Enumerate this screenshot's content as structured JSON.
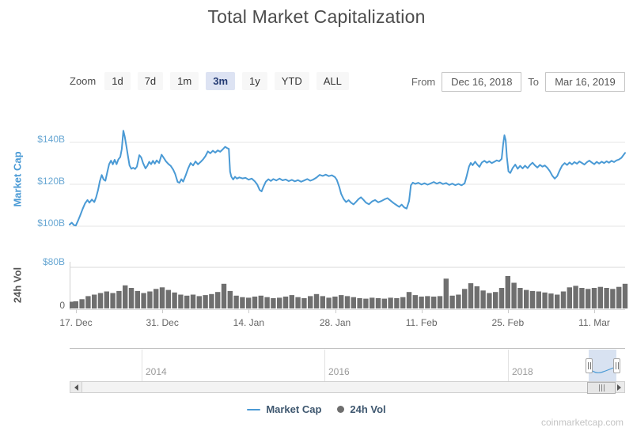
{
  "title": "Total Market Capitalization",
  "range_selector": {
    "zoom_label": "Zoom",
    "buttons": [
      {
        "label": "1d",
        "selected": false
      },
      {
        "label": "7d",
        "selected": false
      },
      {
        "label": "1m",
        "selected": false
      },
      {
        "label": "3m",
        "selected": true
      },
      {
        "label": "1y",
        "selected": false
      },
      {
        "label": "YTD",
        "selected": false
      },
      {
        "label": "ALL",
        "selected": false
      }
    ],
    "from_label": "From",
    "from_value": "Dec 16, 2018",
    "to_label": "To",
    "to_value": "Mar 16, 2019"
  },
  "axes": {
    "market_cap": {
      "title": "Market Cap",
      "ticks": [
        "$140B",
        "$120B",
        "$100B"
      ]
    },
    "volume": {
      "title": "24h Vol",
      "ticks": [
        "$80B",
        "0"
      ]
    },
    "x_ticks": [
      "17. Dec",
      "31. Dec",
      "14. Jan",
      "28. Jan",
      "11. Feb",
      "25. Feb",
      "11. Mar"
    ]
  },
  "navigator": {
    "years": [
      "2014",
      "2016",
      "2018"
    ]
  },
  "legend": [
    {
      "label": "Market Cap",
      "symbol": "line",
      "color": "#4a9ad5"
    },
    {
      "label": "24h Vol",
      "symbol": "circle",
      "color": "#6e6e6e"
    }
  ],
  "watermark": "coinmarketcap.com",
  "colors": {
    "line": "#4a9ad5",
    "volume_bar": "#6f6f6f",
    "y_tick_blue": "#68a7d3",
    "gridline": "#e6e6e6",
    "pane_border": "#d9d9d9",
    "selected_button_bg": "#dde3f3",
    "selection_fill": "rgba(101,141,198,0.25)"
  },
  "chart_data": [
    {
      "type": "line",
      "name": "Market Cap",
      "ylabel": "Market Cap",
      "units": "USD billions",
      "x_unit": "days since Dec 16 2018",
      "x_range": [
        0,
        90
      ],
      "ylim": [
        95,
        152
      ],
      "yticks": [
        100,
        120,
        140
      ],
      "points": [
        [
          0,
          100.8
        ],
        [
          0.35,
          101.7
        ],
        [
          0.7,
          100.5
        ],
        [
          1,
          100.3
        ],
        [
          1.3,
          102.2
        ],
        [
          1.7,
          105.1
        ],
        [
          2.1,
          108.2
        ],
        [
          2.5,
          110.9
        ],
        [
          2.9,
          112.5
        ],
        [
          3.2,
          111.2
        ],
        [
          3.6,
          112.7
        ],
        [
          4,
          111.5
        ],
        [
          4.3,
          113.8
        ],
        [
          4.6,
          117.2
        ],
        [
          4.9,
          121.5
        ],
        [
          5.2,
          124.4
        ],
        [
          5.5,
          122.3
        ],
        [
          5.8,
          121.7
        ],
        [
          6.1,
          125.8
        ],
        [
          6.4,
          129.6
        ],
        [
          6.7,
          131.3
        ],
        [
          7,
          129.5
        ],
        [
          7.3,
          131.7
        ],
        [
          7.6,
          129.6
        ],
        [
          7.9,
          131.9
        ],
        [
          8.2,
          133
        ],
        [
          8.45,
          136.8
        ],
        [
          8.7,
          145.6
        ],
        [
          8.95,
          142.5
        ],
        [
          9.2,
          138
        ],
        [
          9.45,
          133.5
        ],
        [
          9.7,
          129
        ],
        [
          10,
          127.4
        ],
        [
          10.3,
          127.9
        ],
        [
          10.6,
          127.3
        ],
        [
          10.9,
          128.4
        ],
        [
          11.3,
          133.9
        ],
        [
          11.6,
          132.8
        ],
        [
          11.9,
          130.1
        ],
        [
          12.3,
          127.6
        ],
        [
          12.6,
          128.9
        ],
        [
          12.9,
          130.7
        ],
        [
          13.2,
          129.6
        ],
        [
          13.5,
          131.2
        ],
        [
          13.8,
          129.8
        ],
        [
          14.1,
          131.4
        ],
        [
          14.5,
          130.2
        ],
        [
          14.9,
          134.1
        ],
        [
          15.2,
          132.8
        ],
        [
          15.6,
          131
        ],
        [
          16,
          129.7
        ],
        [
          16.4,
          128.7
        ],
        [
          16.8,
          126.9
        ],
        [
          17.1,
          124.9
        ],
        [
          17.5,
          121.1
        ],
        [
          17.8,
          120.7
        ],
        [
          18.1,
          122.4
        ],
        [
          18.4,
          121.3
        ],
        [
          18.8,
          124.2
        ],
        [
          19.2,
          127.6
        ],
        [
          19.6,
          130.1
        ],
        [
          20,
          129
        ],
        [
          20.4,
          130.9
        ],
        [
          20.8,
          129.5
        ],
        [
          21.2,
          130.6
        ],
        [
          21.6,
          131.8
        ],
        [
          22,
          133.4
        ],
        [
          22.4,
          135.7
        ],
        [
          22.8,
          134.8
        ],
        [
          23.2,
          136
        ],
        [
          23.6,
          135.1
        ],
        [
          24,
          136.2
        ],
        [
          24.4,
          135.5
        ],
        [
          24.8,
          136.6
        ],
        [
          25.2,
          137.9
        ],
        [
          25.5,
          137.3
        ],
        [
          25.8,
          136.9
        ],
        [
          26,
          126
        ],
        [
          26.2,
          123.6
        ],
        [
          26.5,
          122.3
        ],
        [
          26.8,
          123.6
        ],
        [
          27.1,
          122.7
        ],
        [
          27.5,
          123.3
        ],
        [
          28,
          122.8
        ],
        [
          28.5,
          123.1
        ],
        [
          29,
          122.2
        ],
        [
          29.5,
          122.7
        ],
        [
          30,
          121.4
        ],
        [
          30.4,
          119.9
        ],
        [
          30.8,
          117.3
        ],
        [
          31.1,
          116.6
        ],
        [
          31.4,
          118.8
        ],
        [
          31.8,
          121.3
        ],
        [
          32.2,
          122.4
        ],
        [
          32.6,
          121.6
        ],
        [
          33,
          122.5
        ],
        [
          33.5,
          121.8
        ],
        [
          34,
          122.7
        ],
        [
          34.5,
          121.9
        ],
        [
          35,
          122.3
        ],
        [
          35.5,
          121.5
        ],
        [
          36,
          122.1
        ],
        [
          36.5,
          121.4
        ],
        [
          37,
          122
        ],
        [
          37.5,
          121.2
        ],
        [
          38,
          121.8
        ],
        [
          38.5,
          122.5
        ],
        [
          39,
          121.7
        ],
        [
          39.5,
          122.3
        ],
        [
          40,
          123.2
        ],
        [
          40.5,
          124.5
        ],
        [
          41,
          124
        ],
        [
          41.5,
          124.6
        ],
        [
          42,
          123.9
        ],
        [
          42.5,
          124.3
        ],
        [
          43,
          123.4
        ],
        [
          43.3,
          122.1
        ],
        [
          43.7,
          118.6
        ],
        [
          44,
          115.4
        ],
        [
          44.4,
          113
        ],
        [
          44.8,
          111.5
        ],
        [
          45.2,
          112.4
        ],
        [
          45.6,
          111.2
        ],
        [
          46,
          110.4
        ],
        [
          46.4,
          111.6
        ],
        [
          46.8,
          112.9
        ],
        [
          47.2,
          113.8
        ],
        [
          47.6,
          112.6
        ],
        [
          48,
          111.3
        ],
        [
          48.5,
          110.5
        ],
        [
          49,
          111.8
        ],
        [
          49.5,
          112.5
        ],
        [
          50,
          111.4
        ],
        [
          50.5,
          112
        ],
        [
          51,
          112.8
        ],
        [
          51.5,
          113.4
        ],
        [
          52,
          112.2
        ],
        [
          52.5,
          111
        ],
        [
          53,
          110
        ],
        [
          53.4,
          109.2
        ],
        [
          53.8,
          110.3
        ],
        [
          54.2,
          109
        ],
        [
          54.6,
          108.4
        ],
        [
          55,
          112
        ],
        [
          55.3,
          119.5
        ],
        [
          55.6,
          120.8
        ],
        [
          56,
          120.2
        ],
        [
          56.5,
          120.7
        ],
        [
          57,
          119.9
        ],
        [
          57.5,
          120.5
        ],
        [
          58,
          119.8
        ],
        [
          58.5,
          120.4
        ],
        [
          59,
          121.1
        ],
        [
          59.5,
          120.3
        ],
        [
          60,
          120.9
        ],
        [
          60.5,
          120.1
        ],
        [
          61,
          120.6
        ],
        [
          61.5,
          119.7
        ],
        [
          62,
          120.3
        ],
        [
          62.5,
          119.6
        ],
        [
          63,
          120.2
        ],
        [
          63.5,
          119.5
        ],
        [
          64,
          120.4
        ],
        [
          64.3,
          123.5
        ],
        [
          64.7,
          128.4
        ],
        [
          65,
          130.2
        ],
        [
          65.3,
          129.1
        ],
        [
          65.7,
          130.8
        ],
        [
          66,
          129.6
        ],
        [
          66.4,
          128.3
        ],
        [
          66.8,
          130.4
        ],
        [
          67.2,
          131.2
        ],
        [
          67.6,
          130.3
        ],
        [
          68,
          131
        ],
        [
          68.4,
          130.1
        ],
        [
          68.8,
          130.7
        ],
        [
          69.2,
          131.4
        ],
        [
          69.6,
          131
        ],
        [
          70,
          132.1
        ],
        [
          70.25,
          139.1
        ],
        [
          70.45,
          143.4
        ],
        [
          70.65,
          141
        ],
        [
          70.85,
          133
        ],
        [
          71.1,
          126.2
        ],
        [
          71.4,
          125.4
        ],
        [
          71.8,
          127.8
        ],
        [
          72.2,
          129.4
        ],
        [
          72.6,
          127.4
        ],
        [
          73,
          128.8
        ],
        [
          73.4,
          127.6
        ],
        [
          73.8,
          128.9
        ],
        [
          74.2,
          127.7
        ],
        [
          74.6,
          129.2
        ],
        [
          75,
          130.3
        ],
        [
          75.4,
          129
        ],
        [
          75.8,
          128
        ],
        [
          76.2,
          129.3
        ],
        [
          76.6,
          128.4
        ],
        [
          77,
          129
        ],
        [
          77.4,
          127.9
        ],
        [
          77.8,
          126.3
        ],
        [
          78.2,
          124.1
        ],
        [
          78.6,
          122.7
        ],
        [
          79,
          123.9
        ],
        [
          79.4,
          126.6
        ],
        [
          79.8,
          128.9
        ],
        [
          80.2,
          130.1
        ],
        [
          80.6,
          129.2
        ],
        [
          81,
          130.4
        ],
        [
          81.4,
          129.5
        ],
        [
          81.8,
          130.6
        ],
        [
          82.2,
          129.8
        ],
        [
          82.6,
          130.9
        ],
        [
          83,
          130.2
        ],
        [
          83.4,
          129.4
        ],
        [
          83.8,
          130.5
        ],
        [
          84.2,
          131.3
        ],
        [
          84.6,
          130.4
        ],
        [
          85,
          129.6
        ],
        [
          85.4,
          130.7
        ],
        [
          85.8,
          129.9
        ],
        [
          86.2,
          130.8
        ],
        [
          86.6,
          130.1
        ],
        [
          87,
          131
        ],
        [
          87.4,
          130.3
        ],
        [
          87.8,
          131.2
        ],
        [
          88.2,
          130.6
        ],
        [
          88.6,
          131.4
        ],
        [
          89,
          131.8
        ],
        [
          89.4,
          132.6
        ],
        [
          89.7,
          133.8
        ],
        [
          90,
          135
        ]
      ]
    },
    {
      "type": "bar",
      "name": "24h Vol",
      "ylabel": "24h Vol",
      "units": "USD billions",
      "x_unit": "days since Dec 16 2018",
      "ylim": [
        0,
        92
      ],
      "yticks": [
        0,
        80
      ],
      "values": [
        13,
        14,
        18,
        24,
        27,
        30,
        33,
        30,
        34,
        45,
        40,
        34,
        30,
        33,
        38,
        41,
        36,
        31,
        27,
        25,
        27,
        24,
        26,
        28,
        32,
        48,
        34,
        25,
        22,
        21,
        23,
        25,
        22,
        20,
        21,
        23,
        26,
        22,
        20,
        24,
        28,
        24,
        21,
        23,
        26,
        24,
        22,
        20,
        19,
        21,
        20,
        19,
        21,
        20,
        22,
        32,
        26,
        23,
        24,
        23,
        24,
        58,
        25,
        27,
        38,
        49,
        43,
        35,
        30,
        32,
        40,
        63,
        50,
        40,
        36,
        34,
        33,
        31,
        29,
        27,
        33,
        41,
        44,
        40,
        38,
        40,
        42,
        40,
        38,
        42,
        48
      ]
    }
  ]
}
